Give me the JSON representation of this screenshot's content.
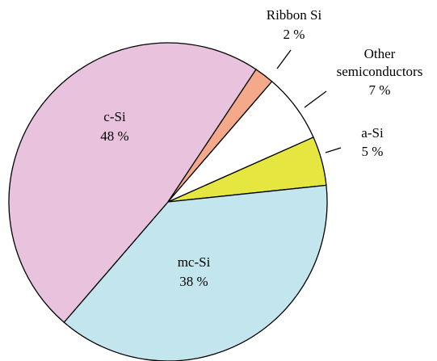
{
  "chart_data": {
    "type": "pie",
    "categories": [
      "a-Si",
      "mc-Si",
      "c-Si",
      "Ribbon Si",
      "Other\nsemiconductors"
    ],
    "labels": [
      "a-Si",
      "mc-Si",
      "c-Si",
      "Ribbon Si",
      [
        "Other",
        "semiconductors"
      ]
    ],
    "values": [
      5,
      38,
      48,
      2,
      7
    ],
    "value_labels": [
      "5 %",
      "38 %",
      "48 %",
      "2 %",
      "7 %"
    ],
    "colors": [
      "#e6e640",
      "#c3e6ee",
      "#e9c3de",
      "#f4a98a",
      "#ffffff"
    ]
  }
}
